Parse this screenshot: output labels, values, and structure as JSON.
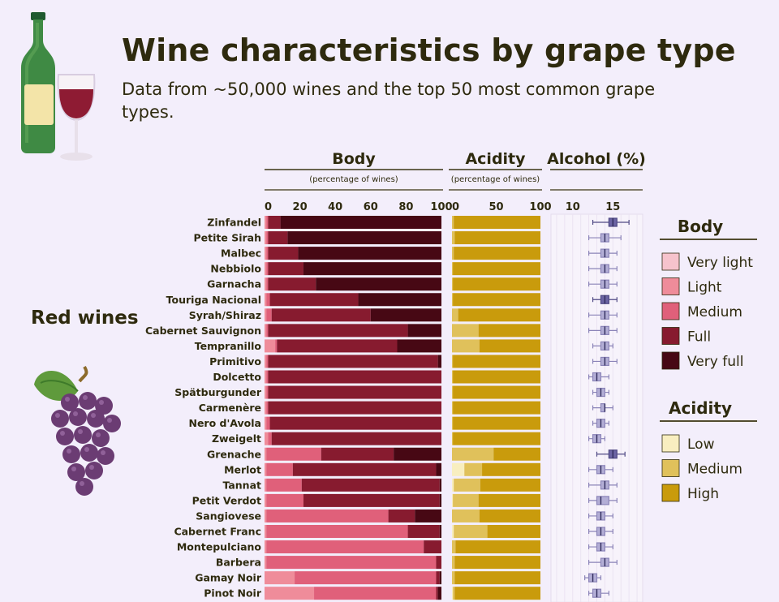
{
  "header": {
    "title": "Wine characteristics by grape type",
    "subtitle": "Data from ~50,000 wines and the top 50 most common grape types."
  },
  "group_label": "Red wines",
  "colors": {
    "background": "#f3eefb",
    "text": "#2e2a0e",
    "body": [
      "#f6c3cc",
      "#ef8c9a",
      "#e0607a",
      "#871b2f",
      "#470814"
    ],
    "acidity": [
      "#f8eec0",
      "#e0c15b",
      "#c99b0c"
    ],
    "boxplot": "#8b84b8"
  },
  "chart_data": {
    "type": "bar",
    "categories": [
      "Zinfandel",
      "Petite Sirah",
      "Malbec",
      "Nebbiolo",
      "Garnacha",
      "Touriga Nacional",
      "Syrah/Shiraz",
      "Cabernet Sauvignon",
      "Tempranillo",
      "Primitivo",
      "Dolcetto",
      "Spätburgunder",
      "Carmenère",
      "Nero d'Avola",
      "Zweigelt",
      "Grenache",
      "Merlot",
      "Tannat",
      "Petit Verdot",
      "Sangiovese",
      "Cabernet Franc",
      "Montepulciano",
      "Barbera",
      "Gamay Noir",
      "Pinot Noir"
    ],
    "body": {
      "title": "Body",
      "subtitle": "(percentage of wines)",
      "ticks": [
        0,
        20,
        40,
        60,
        80,
        100
      ],
      "xlim": [
        0,
        100
      ],
      "series": [
        {
          "name": "Very light",
          "values": [
            0,
            0,
            0,
            0,
            0,
            0,
            0,
            0,
            0,
            0,
            0,
            0,
            0,
            0,
            0,
            0,
            0,
            0,
            0,
            0,
            0,
            0,
            0,
            0,
            0
          ]
        },
        {
          "name": "Light",
          "values": [
            1,
            1,
            1,
            1,
            1,
            1,
            1,
            1,
            6,
            1,
            1,
            1,
            1,
            1,
            2,
            1,
            1,
            1,
            1,
            1,
            1,
            1,
            1,
            17,
            28
          ]
        },
        {
          "name": "Medium",
          "values": [
            1,
            1,
            1,
            1,
            1,
            2,
            3,
            1,
            1,
            1,
            1,
            1,
            1,
            2,
            2,
            31,
            15,
            20,
            21,
            69,
            80,
            89,
            96,
            80,
            69
          ]
        },
        {
          "name": "Full",
          "values": [
            7,
            11,
            17,
            20,
            27,
            50,
            56,
            79,
            68,
            96,
            98,
            98,
            98,
            97,
            96,
            41,
            81,
            78,
            77,
            15,
            18,
            10,
            3,
            2,
            1
          ]
        },
        {
          "name": "Very full",
          "values": [
            91,
            87,
            81,
            78,
            71,
            47,
            40,
            19,
            25,
            2,
            0,
            0,
            0,
            0,
            0,
            27,
            3,
            1,
            1,
            15,
            1,
            0,
            0,
            1,
            2
          ]
        }
      ]
    },
    "acidity": {
      "title": "Acidity",
      "subtitle": "(percentage of wines)",
      "ticks": [
        0,
        50,
        100
      ],
      "xlim": [
        0,
        100
      ],
      "series": [
        {
          "name": "Low",
          "values": [
            0,
            0,
            0,
            0,
            0,
            0,
            0,
            0,
            0,
            0,
            0,
            0,
            0,
            0,
            0,
            0,
            14,
            2,
            1,
            0,
            2,
            0,
            0,
            0,
            1
          ]
        },
        {
          "name": "Medium",
          "values": [
            2,
            3,
            2,
            1,
            1,
            1,
            7,
            30,
            31,
            1,
            1,
            1,
            1,
            1,
            1,
            47,
            20,
            30,
            29,
            31,
            38,
            4,
            3,
            3,
            2
          ]
        },
        {
          "name": "High",
          "values": [
            98,
            97,
            98,
            99,
            99,
            99,
            93,
            70,
            69,
            99,
            99,
            99,
            99,
            99,
            99,
            53,
            66,
            68,
            70,
            69,
            60,
            96,
            97,
            97,
            97
          ]
        }
      ]
    },
    "alcohol": {
      "title": "Alcohol (%)",
      "ticks": [
        10,
        15
      ],
      "xlim": [
        7.5,
        18.5
      ],
      "boxes": [
        {
          "min": 12.5,
          "q1": 14.5,
          "median": 15,
          "q3": 15.5,
          "max": 17,
          "dark": true
        },
        {
          "min": 12,
          "q1": 13.5,
          "median": 14,
          "q3": 14.5,
          "max": 16,
          "dark": false
        },
        {
          "min": 12,
          "q1": 13.5,
          "median": 14,
          "q3": 14.5,
          "max": 15.5,
          "dark": false
        },
        {
          "min": 12,
          "q1": 13.5,
          "median": 14,
          "q3": 14.5,
          "max": 15.5,
          "dark": false
        },
        {
          "min": 12,
          "q1": 13.5,
          "median": 14,
          "q3": 14.5,
          "max": 15.5,
          "dark": false
        },
        {
          "min": 12.5,
          "q1": 13.5,
          "median": 14,
          "q3": 14.5,
          "max": 15.5,
          "dark": true
        },
        {
          "min": 12,
          "q1": 13.5,
          "median": 14,
          "q3": 14.5,
          "max": 15.5,
          "dark": false
        },
        {
          "min": 12,
          "q1": 13.5,
          "median": 14,
          "q3": 14.5,
          "max": 15.5,
          "dark": false
        },
        {
          "min": 12.5,
          "q1": 13.5,
          "median": 14,
          "q3": 14.5,
          "max": 15,
          "dark": false
        },
        {
          "min": 12.5,
          "q1": 13.5,
          "median": 14,
          "q3": 14.5,
          "max": 15.5,
          "dark": false
        },
        {
          "min": 12,
          "q1": 12.5,
          "median": 13,
          "q3": 13.5,
          "max": 14.5,
          "dark": false
        },
        {
          "min": 12.5,
          "q1": 13,
          "median": 13.5,
          "q3": 14,
          "max": 14.5,
          "dark": false
        },
        {
          "min": 12.5,
          "q1": 13.5,
          "median": 14,
          "q3": 14,
          "max": 15,
          "dark": false
        },
        {
          "min": 12.5,
          "q1": 13,
          "median": 13.5,
          "q3": 14,
          "max": 14.5,
          "dark": false
        },
        {
          "min": 12,
          "q1": 12.5,
          "median": 13,
          "q3": 13.5,
          "max": 14,
          "dark": false
        },
        {
          "min": 13,
          "q1": 14.5,
          "median": 15,
          "q3": 15.5,
          "max": 16.5,
          "dark": true
        },
        {
          "min": 12,
          "q1": 13,
          "median": 13.5,
          "q3": 14,
          "max": 15,
          "dark": false
        },
        {
          "min": 12,
          "q1": 13.5,
          "median": 14,
          "q3": 14.5,
          "max": 15.5,
          "dark": false
        },
        {
          "min": 12,
          "q1": 13,
          "median": 13.5,
          "q3": 14.5,
          "max": 15.5,
          "dark": false
        },
        {
          "min": 12,
          "q1": 13,
          "median": 13.5,
          "q3": 14,
          "max": 15,
          "dark": false
        },
        {
          "min": 12,
          "q1": 13,
          "median": 13.5,
          "q3": 14,
          "max": 15,
          "dark": false
        },
        {
          "min": 12,
          "q1": 13,
          "median": 13.5,
          "q3": 14,
          "max": 15,
          "dark": false
        },
        {
          "min": 12,
          "q1": 13.5,
          "median": 14,
          "q3": 14.5,
          "max": 15.5,
          "dark": false
        },
        {
          "min": 11.5,
          "q1": 12,
          "median": 12.5,
          "q3": 13,
          "max": 13.5,
          "dark": false
        },
        {
          "min": 12,
          "q1": 12.5,
          "median": 13,
          "q3": 13.5,
          "max": 14.5,
          "dark": false
        }
      ]
    },
    "legend_body": {
      "title": "Body",
      "labels": [
        "Very light",
        "Light",
        "Medium",
        "Full",
        "Very full"
      ]
    },
    "legend_acidity": {
      "title": "Acidity",
      "labels": [
        "Low",
        "Medium",
        "High"
      ]
    }
  }
}
